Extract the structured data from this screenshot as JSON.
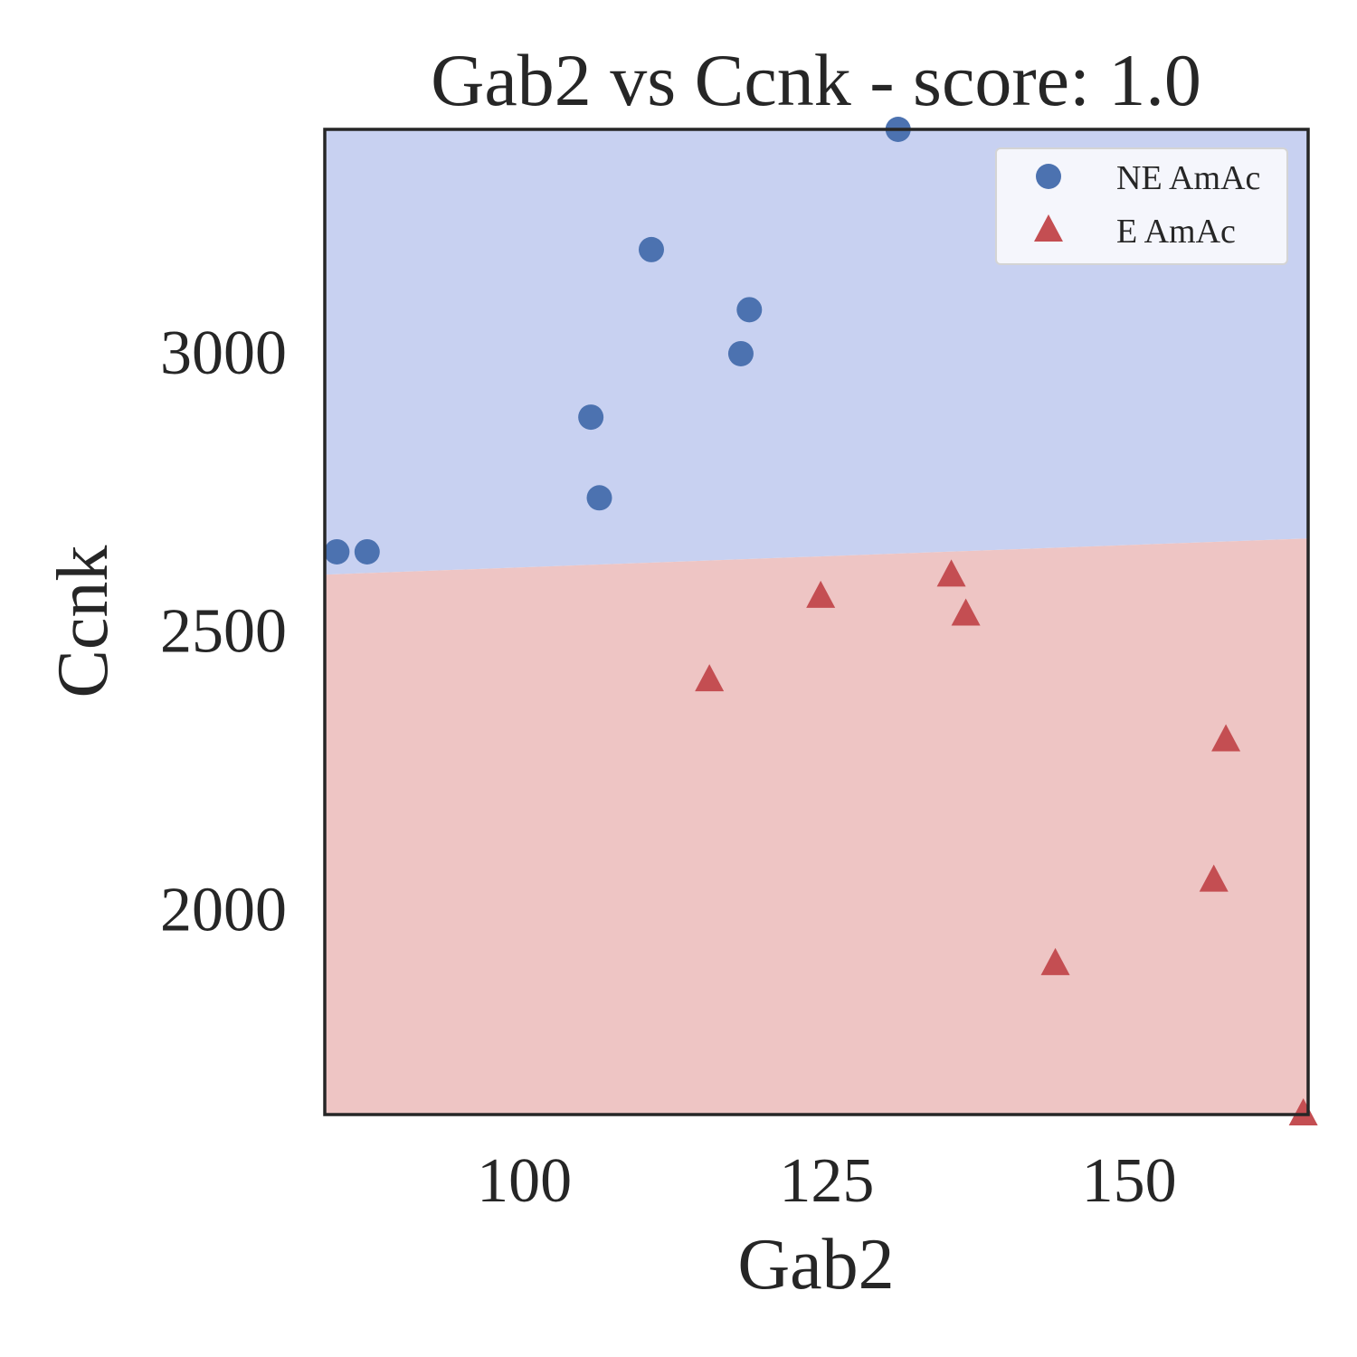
{
  "chart_data": {
    "type": "scatter",
    "title": "Gab2 vs Ccnk - score: 1.0",
    "xlabel": "Gab2",
    "ylabel": "Ccnk",
    "xlim": [
      83.5,
      164.8
    ],
    "ylim": [
      1630,
      3400
    ],
    "xticks": [
      100,
      125,
      150
    ],
    "yticks": [
      2000,
      2500,
      3000
    ],
    "grid": false,
    "legend_position": "top-right",
    "decision_boundary": {
      "points": [
        [
          83.5,
          2600
        ],
        [
          164.8,
          2665
        ]
      ],
      "above_class": "NE AmAc",
      "below_class": "E AmAc"
    },
    "series": [
      {
        "name": "NE AmAc",
        "marker": "circle",
        "color": "#4c72b0",
        "region_color": "#c8d1f1",
        "points": [
          {
            "x": 84.5,
            "y": 2641
          },
          {
            "x": 87.0,
            "y": 2641
          },
          {
            "x": 105.5,
            "y": 2883
          },
          {
            "x": 106.2,
            "y": 2738
          },
          {
            "x": 110.5,
            "y": 3184
          },
          {
            "x": 117.9,
            "y": 2997
          },
          {
            "x": 118.6,
            "y": 3076
          },
          {
            "x": 130.9,
            "y": 3400
          }
        ]
      },
      {
        "name": "E AmAc",
        "marker": "triangle",
        "color": "#c44e52",
        "region_color": "#eec5c4",
        "points": [
          {
            "x": 115.3,
            "y": 2410
          },
          {
            "x": 124.5,
            "y": 2560
          },
          {
            "x": 135.3,
            "y": 2598
          },
          {
            "x": 136.5,
            "y": 2528
          },
          {
            "x": 143.9,
            "y": 1900
          },
          {
            "x": 157.0,
            "y": 2050
          },
          {
            "x": 158.0,
            "y": 2302
          },
          {
            "x": 164.4,
            "y": 1630
          }
        ]
      }
    ]
  }
}
